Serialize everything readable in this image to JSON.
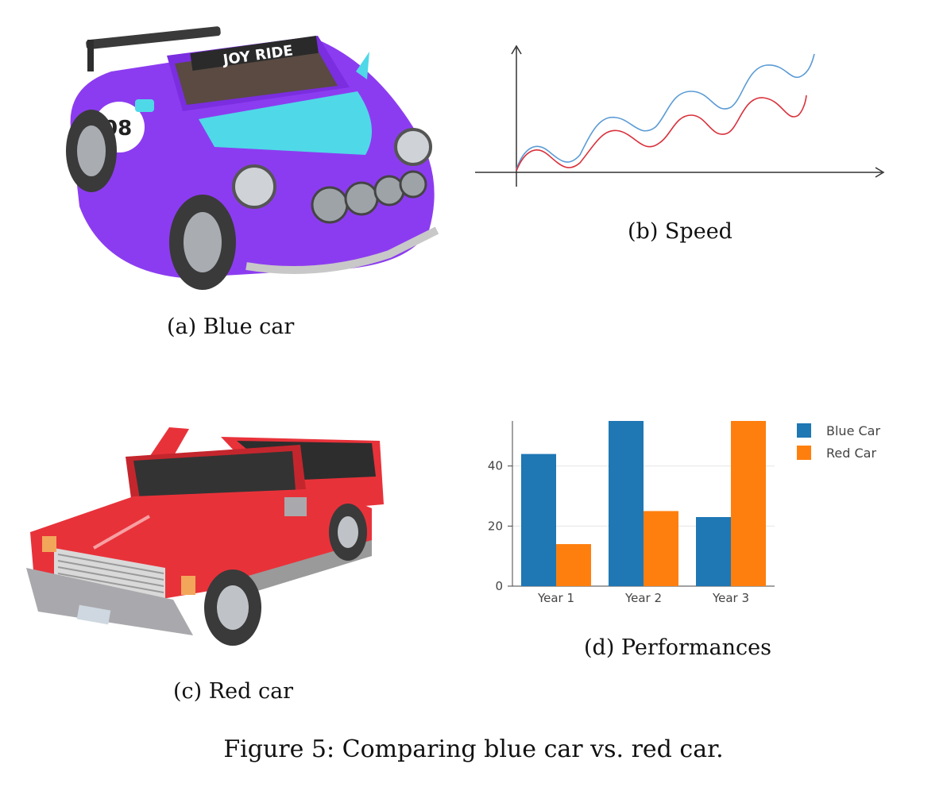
{
  "figure_caption": "Figure 5: Comparing blue car vs. red car.",
  "panels": {
    "a": {
      "caption": "(a) Blue car",
      "car_text": "JOY RIDE",
      "car_number": "08",
      "car_color": "#8c3cf0"
    },
    "b": {
      "caption": "(b) Speed"
    },
    "c": {
      "caption": "(c) Red car",
      "car_color": "#e8323a"
    },
    "d": {
      "caption": "(d) Performances"
    }
  },
  "speed_chart": {
    "type": "line",
    "series": [
      {
        "color": "#5b9bd5"
      },
      {
        "color": "#d9303b"
      }
    ]
  },
  "chart_data": {
    "type": "bar",
    "categories": [
      "Year 1",
      "Year 2",
      "Year 3"
    ],
    "series": [
      {
        "name": "Blue Car",
        "values": [
          44,
          55,
          23
        ],
        "color": "#1f77b4"
      },
      {
        "name": "Red Car",
        "values": [
          14,
          25,
          55
        ],
        "color": "#ff7f0e"
      }
    ],
    "yticks": [
      0,
      20,
      40
    ],
    "ylim": [
      0,
      55
    ],
    "grid": true,
    "legend_position": "top-right"
  }
}
